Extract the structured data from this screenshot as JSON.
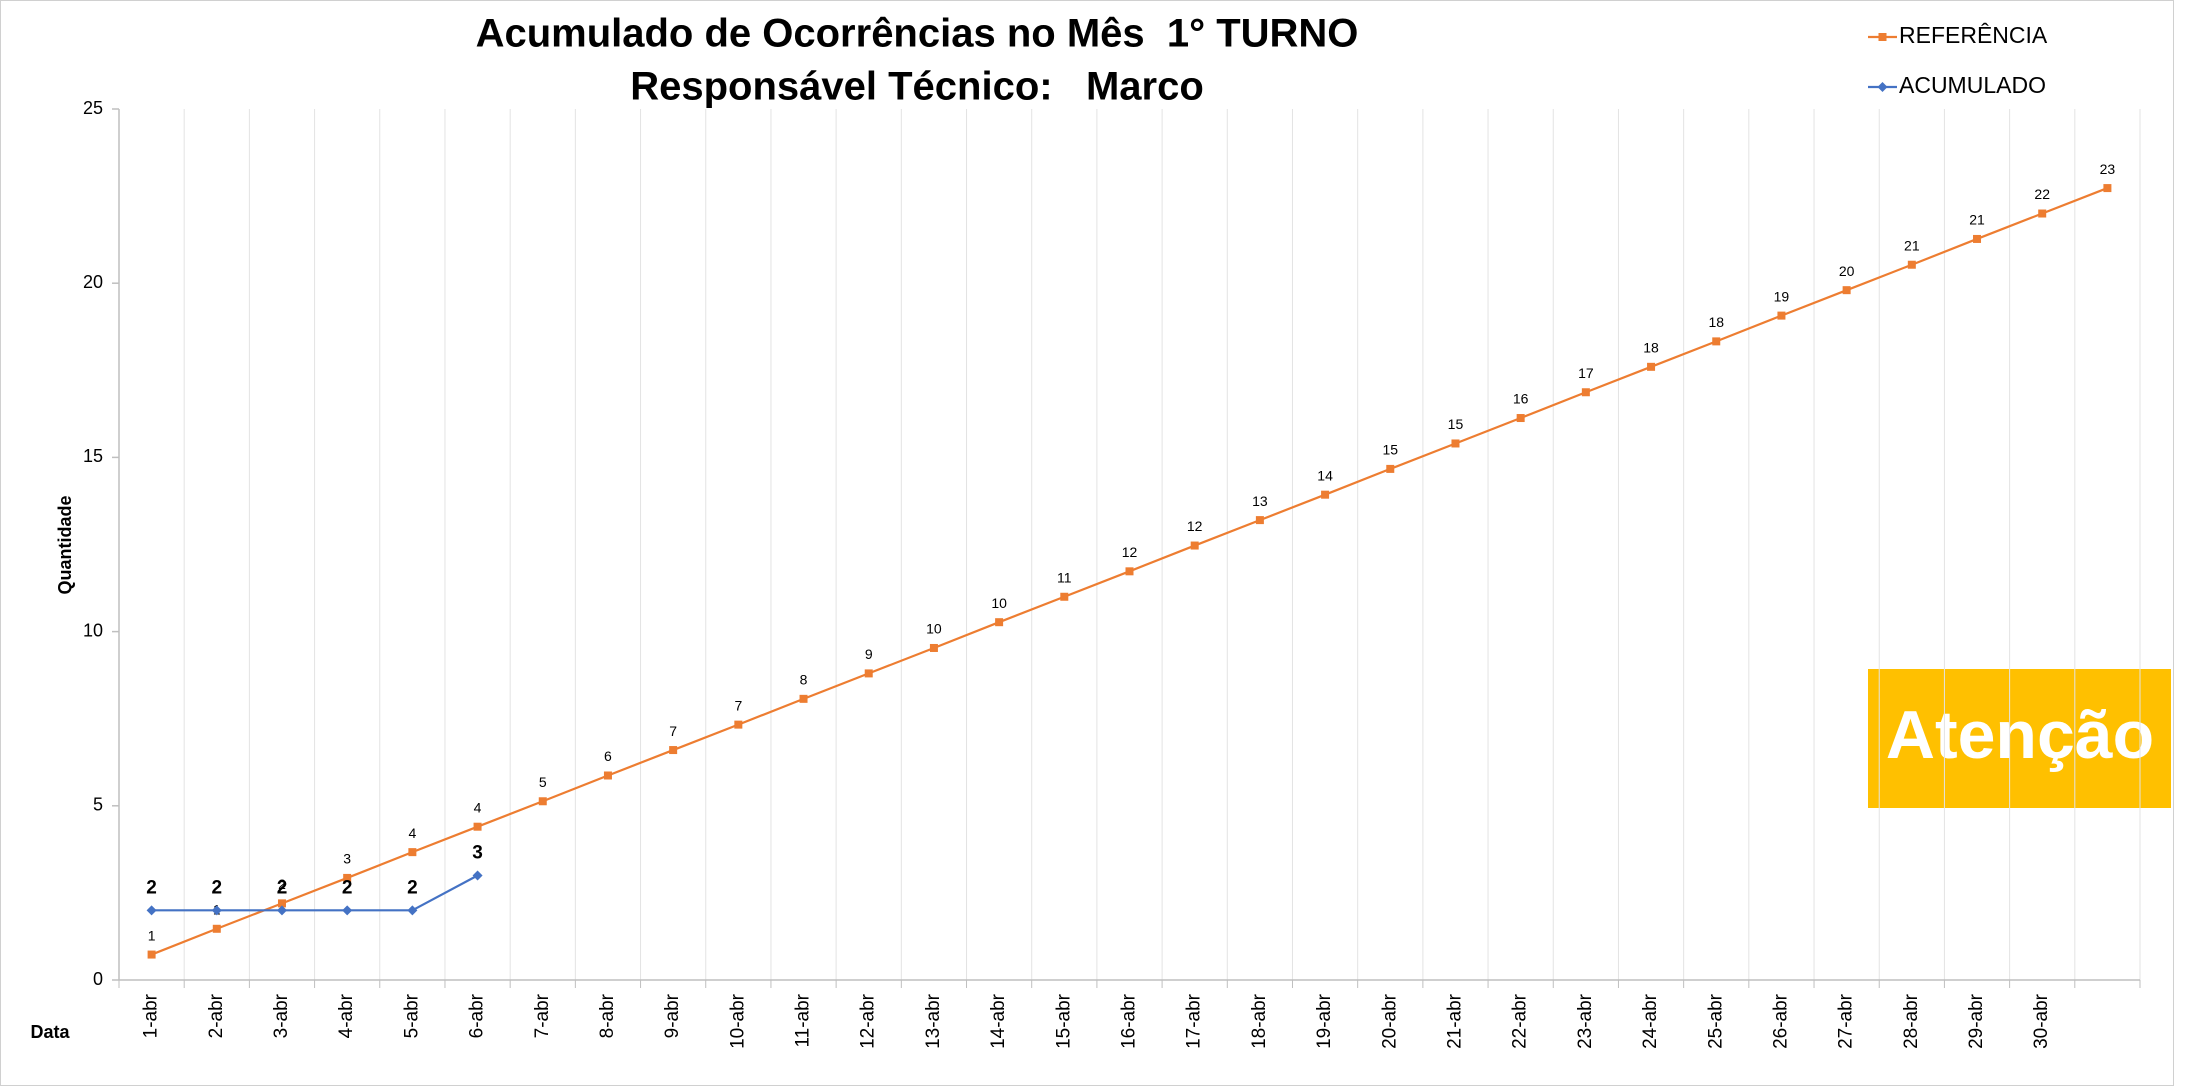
{
  "chart_data": {
    "type": "line",
    "title": "Acumulado de Ocorrências no Mês  1° TURNO",
    "subtitle": "Responsável Técnico:   Marco",
    "y_label": "Quantidade",
    "x_label": "Data",
    "annotation": "Atenção",
    "categories": [
      "1-abr",
      "2-abr",
      "3-abr",
      "4-abr",
      "5-abr",
      "6-abr",
      "7-abr",
      "8-abr",
      "9-abr",
      "10-abr",
      "11-abr",
      "12-abr",
      "13-abr",
      "14-abr",
      "15-abr",
      "16-abr",
      "17-abr",
      "18-abr",
      "19-abr",
      "20-abr",
      "21-abr",
      "22-abr",
      "23-abr",
      "24-abr",
      "25-abr",
      "26-abr",
      "27-abr",
      "28-abr",
      "29-abr",
      "30-abr",
      null
    ],
    "series": [
      {
        "name": "REFERÊNCIA",
        "color": "#ed7d31",
        "marker": "square",
        "values": [
          0.73,
          1.47,
          2.2,
          2.93,
          3.67,
          4.4,
          5.13,
          5.87,
          6.6,
          7.33,
          8.07,
          8.8,
          9.53,
          10.27,
          11,
          11.73,
          12.47,
          13.2,
          13.93,
          14.67,
          15.4,
          16.13,
          16.87,
          17.6,
          18.33,
          19.07,
          19.8,
          20.53,
          21.27,
          22,
          22.73
        ],
        "value_labels": [
          "1",
          "1",
          "2",
          "3",
          "4",
          "4",
          "5",
          "6",
          "7",
          "7",
          "8",
          "9",
          "10",
          "10",
          "11",
          "12",
          "12",
          "13",
          "14",
          "15",
          "15",
          "16",
          "17",
          "18",
          "18",
          "19",
          "20",
          "21",
          "21",
          "22",
          "23"
        ]
      },
      {
        "name": "ACUMULADO",
        "color": "#4472c4",
        "marker": "diamond",
        "values": [
          2,
          2,
          2,
          2,
          2,
          3,
          null,
          null,
          null,
          null,
          null,
          null,
          null,
          null,
          null,
          null,
          null,
          null,
          null,
          null,
          null,
          null,
          null,
          null,
          null,
          null,
          null,
          null,
          null,
          null,
          null
        ]
      }
    ],
    "ylim": [
      0,
      25
    ],
    "yticks": [
      0,
      5,
      10,
      15,
      20,
      25
    ],
    "grid": false,
    "legend": "top-right"
  }
}
